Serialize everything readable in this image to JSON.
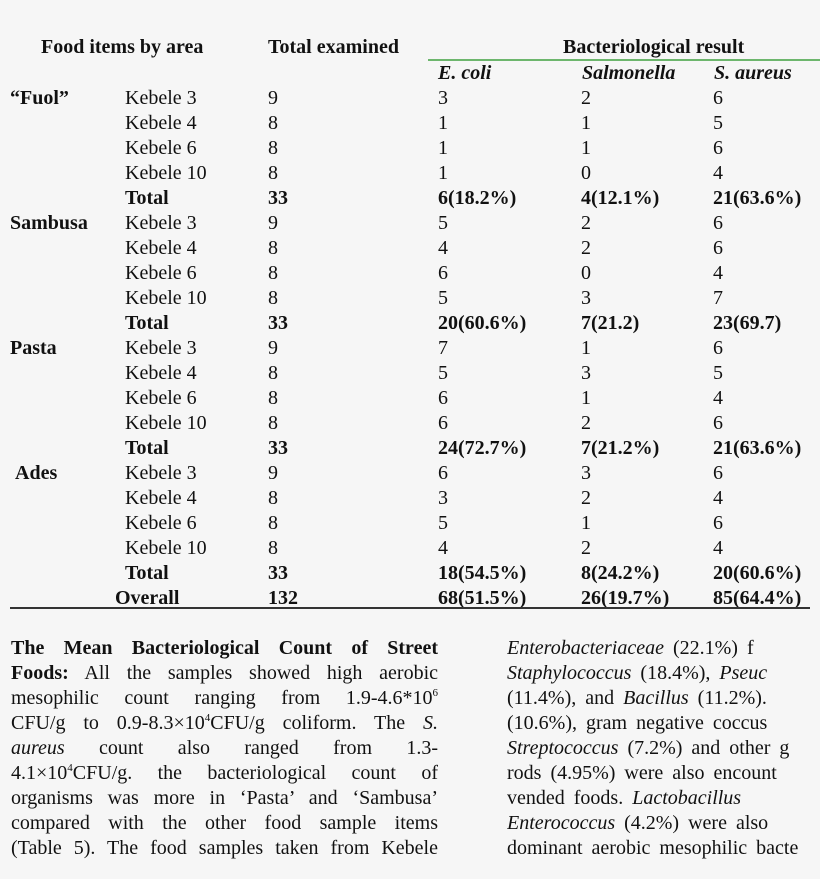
{
  "table": {
    "headers": {
      "food_items": "Food items by area",
      "total_examined": "Total examined",
      "result": "Bacteriological result",
      "ecoli": "E. coli",
      "salmonella": "Salmonella",
      "saureus": "S. aureus"
    },
    "rows": [
      {
        "food": "“Fuol”",
        "area": "Kebele 3",
        "total": "9",
        "ecoli": "3",
        "salm": "2",
        "saur": "6",
        "bold": false
      },
      {
        "food": "",
        "area": "Kebele 4",
        "total": "8",
        "ecoli": "1",
        "salm": "1",
        "saur": "5",
        "bold": false
      },
      {
        "food": "",
        "area": "Kebele 6",
        "total": "8",
        "ecoli": "1",
        "salm": "1",
        "saur": "6",
        "bold": false
      },
      {
        "food": "",
        "area": "Kebele 10",
        "total": "8",
        "ecoli": "1",
        "salm": "0",
        "saur": "4",
        "bold": false
      },
      {
        "food": "",
        "area": "Total",
        "total": "33",
        "ecoli": "6(18.2%)",
        "salm": "4(12.1%)",
        "saur": "21(63.6%)",
        "bold": true
      },
      {
        "food": "Sambusa",
        "area": "Kebele 3",
        "total": "9",
        "ecoli": "5",
        "salm": "2",
        "saur": "6",
        "bold": false
      },
      {
        "food": "",
        "area": "Kebele 4",
        "total": "8",
        "ecoli": "4",
        "salm": "2",
        "saur": "6",
        "bold": false
      },
      {
        "food": "",
        "area": "Kebele 6",
        "total": "8",
        "ecoli": "6",
        "salm": "0",
        "saur": "4",
        "bold": false
      },
      {
        "food": "",
        "area": "Kebele 10",
        "total": "8",
        "ecoli": "5",
        "salm": "3",
        "saur": "7",
        "bold": false
      },
      {
        "food": "",
        "area": "Total",
        "total": "33",
        "ecoli": "20(60.6%)",
        "salm": "7(21.2)",
        "saur": "23(69.7)",
        "bold": true
      },
      {
        "food": "Pasta",
        "area": "Kebele 3",
        "total": "9",
        "ecoli": "7",
        "salm": "1",
        "saur": "6",
        "bold": false
      },
      {
        "food": "",
        "area": "Kebele 4",
        "total": "8",
        "ecoli": "5",
        "salm": "3",
        "saur": "5",
        "bold": false
      },
      {
        "food": "",
        "area": "Kebele 6",
        "total": "8",
        "ecoli": "6",
        "salm": "1",
        "saur": "4",
        "bold": false
      },
      {
        "food": "",
        "area": "Kebele 10",
        "total": "8",
        "ecoli": "6",
        "salm": "2",
        "saur": "6",
        "bold": false
      },
      {
        "food": "",
        "area": "Total",
        "total": "33",
        "ecoli": "24(72.7%)",
        "salm": "7(21.2%)",
        "saur": "21(63.6%)",
        "bold": true
      },
      {
        "food": "Ades",
        "area": "Kebele 3",
        "total": "9",
        "ecoli": "6",
        "salm": "3",
        "saur": "6",
        "bold": false
      },
      {
        "food": "",
        "area": "Kebele 4",
        "total": "8",
        "ecoli": "3",
        "salm": "2",
        "saur": "4",
        "bold": false
      },
      {
        "food": "",
        "area": "Kebele 6",
        "total": "8",
        "ecoli": "5",
        "salm": "1",
        "saur": "6",
        "bold": false
      },
      {
        "food": "",
        "area": "Kebele 10",
        "total": "8",
        "ecoli": "4",
        "salm": "2",
        "saur": "4",
        "bold": false
      },
      {
        "food": "",
        "area": "Total",
        "total": "33",
        "ecoli": "18(54.5%)",
        "salm": "8(24.2%)",
        "saur": "20(60.6%)",
        "bold": true
      },
      {
        "food": "",
        "area": "Overall",
        "total": "132",
        "ecoli": "68(51.5%)",
        "salm": "26(19.7%)",
        "saur": "85(64.4%)",
        "bold": true
      }
    ],
    "rule_color": "#6db66d"
  },
  "body": {
    "left_lines": [
      [
        {
          "t": "The Mean Bacteriological Count of Street",
          "s": "b"
        }
      ],
      [
        {
          "t": "Foods:",
          "s": "b"
        },
        {
          "t": " All the samples showed high aerobic",
          "s": ""
        }
      ],
      [
        {
          "t": "mesophilic count ranging from 1.9-4.6*10",
          "s": ""
        },
        {
          "t": "6",
          "s": "sup"
        }
      ],
      [
        {
          "t": "CFU/g to 0.9-8.3×10",
          "s": ""
        },
        {
          "t": "4",
          "s": "sup"
        },
        {
          "t": "CFU/g coliform. The ",
          "s": ""
        },
        {
          "t": "S.",
          "s": "i"
        }
      ],
      [
        {
          "t": "aureus",
          "s": "i"
        },
        {
          "t": " count also ranged from 1.3-",
          "s": ""
        }
      ],
      [
        {
          "t": "4.1×10",
          "s": ""
        },
        {
          "t": "4",
          "s": "sup"
        },
        {
          "t": "CFU/g. the bacteriological count of",
          "s": ""
        }
      ],
      [
        {
          "t": "organisms was more in ‘Pasta’ and ‘Sambusa’",
          "s": ""
        }
      ],
      [
        {
          "t": "compared with the other food sample items",
          "s": ""
        }
      ],
      [
        {
          "t": "(Table 5). The food samples taken from Kebele",
          "s": ""
        }
      ]
    ],
    "right_lines": [
      [
        {
          "t": "Enterobacteriaceae",
          "s": "i"
        },
        {
          "t": " (22.1%) f",
          "s": ""
        }
      ],
      [
        {
          "t": "Staphylococcus",
          "s": "i"
        },
        {
          "t": " (18.4%), ",
          "s": ""
        },
        {
          "t": "Pseuc",
          "s": "i"
        }
      ],
      [
        {
          "t": "(11.4%), and ",
          "s": ""
        },
        {
          "t": "Bacillus",
          "s": "i"
        },
        {
          "t": " (11.2%).",
          "s": ""
        }
      ],
      [
        {
          "t": "(10.6%), gram negative coccus",
          "s": ""
        }
      ],
      [
        {
          "t": "Streptococcus",
          "s": "i"
        },
        {
          "t": " (7.2%) and other g",
          "s": ""
        }
      ],
      [
        {
          "t": "rods (4.95%) were also encount",
          "s": ""
        }
      ],
      [
        {
          "t": "vended foods. ",
          "s": ""
        },
        {
          "t": "Lactobacillus",
          "s": "i"
        }
      ],
      [
        {
          "t": "Enterococcus",
          "s": "i"
        },
        {
          "t": " (4.2%) were also",
          "s": ""
        }
      ],
      [
        {
          "t": "dominant aerobic mesophilic bacte",
          "s": ""
        }
      ]
    ]
  }
}
